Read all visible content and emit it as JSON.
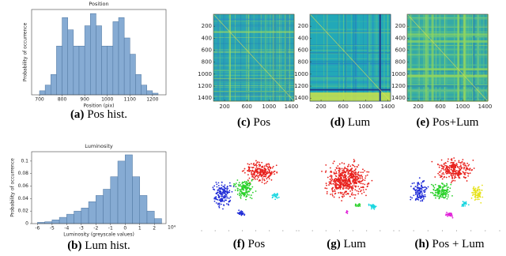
{
  "chart_data": [
    {
      "type": "histogram",
      "title": "Position",
      "x_label": "Position (pix)",
      "y_label": "Probability of occurrence",
      "bins": [
        700,
        725,
        750,
        775,
        800,
        825,
        850,
        875,
        900,
        925,
        950,
        975,
        1000,
        1025,
        1050,
        1075,
        1100,
        1125,
        1150,
        1175,
        1200,
        1225
      ],
      "values": [
        0.005,
        0.012,
        0.025,
        0.06,
        0.095,
        0.08,
        0.06,
        0.06,
        0.085,
        0.1,
        0.085,
        0.06,
        0.06,
        0.09,
        0.095,
        0.07,
        0.05,
        0.025,
        0.012,
        0.005,
        0.002
      ],
      "color": "#86abd3",
      "xlim": [
        665,
        1260
      ],
      "ylim": [
        0,
        0.105
      ],
      "xticks": [
        700,
        800,
        900,
        1000,
        1100,
        1200
      ],
      "caption": {
        "label": "(a)",
        "text": "Pos hist."
      }
    },
    {
      "type": "histogram",
      "title": "Luminosity",
      "x_label": "Luminosity (greyscale values)",
      "y_label": "Probability of occurrence",
      "x_multiplier": "10⁴",
      "bins": [
        -6,
        -5.5,
        -5,
        -4.5,
        -4,
        -3.5,
        -3,
        -2.5,
        -2,
        -1.5,
        -1,
        -0.5,
        0,
        0.5,
        1,
        1.5,
        2,
        2.5
      ],
      "values": [
        0.002,
        0.003,
        0.006,
        0.01,
        0.015,
        0.02,
        0.025,
        0.035,
        0.045,
        0.055,
        0.075,
        0.1,
        0.11,
        0.075,
        0.045,
        0.02,
        0.008
      ],
      "color": "#86abd3",
      "xlim": [
        -6.4,
        2.8
      ],
      "ylim": [
        0,
        0.115
      ],
      "xticks": [
        -6,
        -5,
        -4,
        -3,
        -2,
        -1,
        0,
        1,
        2
      ],
      "yticks": [
        0,
        0.02,
        0.04,
        0.06,
        0.08,
        0.1
      ],
      "caption": {
        "label": "(b)",
        "text": "Lum hist."
      }
    },
    {
      "type": "heatmap",
      "variant": "pos",
      "xlim": [
        0,
        1450
      ],
      "ylim": [
        0,
        1450
      ],
      "xticks": [
        200,
        600,
        1000,
        1400
      ],
      "yticks": [
        200,
        400,
        600,
        800,
        1000,
        1200,
        1400
      ],
      "caption": {
        "label": "(c)",
        "text": "Pos"
      }
    },
    {
      "type": "heatmap",
      "variant": "lum",
      "xlim": [
        0,
        1450
      ],
      "ylim": [
        0,
        1450
      ],
      "xticks": [
        200,
        600,
        1000,
        1400
      ],
      "yticks": [
        200,
        400,
        600,
        800,
        1000,
        1200,
        1400
      ],
      "caption": {
        "label": "(d)",
        "text": "Lum"
      }
    },
    {
      "type": "heatmap",
      "variant": "both",
      "xlim": [
        0,
        1450
      ],
      "ylim": [
        0,
        1450
      ],
      "xticks": [
        200,
        600,
        1000,
        1400
      ],
      "yticks": [
        200,
        400,
        600,
        800,
        1000,
        1200,
        1400
      ],
      "caption": {
        "label": "(e)",
        "text": "Pos+Lum"
      }
    },
    {
      "type": "embedding",
      "variant": "pos",
      "caption": {
        "label": "(f)",
        "text": "Pos"
      }
    },
    {
      "type": "embedding",
      "variant": "lum",
      "caption": {
        "label": "(g)",
        "text": "Lum"
      }
    },
    {
      "type": "embedding",
      "variant": "both",
      "caption": {
        "label": "(h)",
        "text": "Pos + Lum"
      }
    }
  ]
}
